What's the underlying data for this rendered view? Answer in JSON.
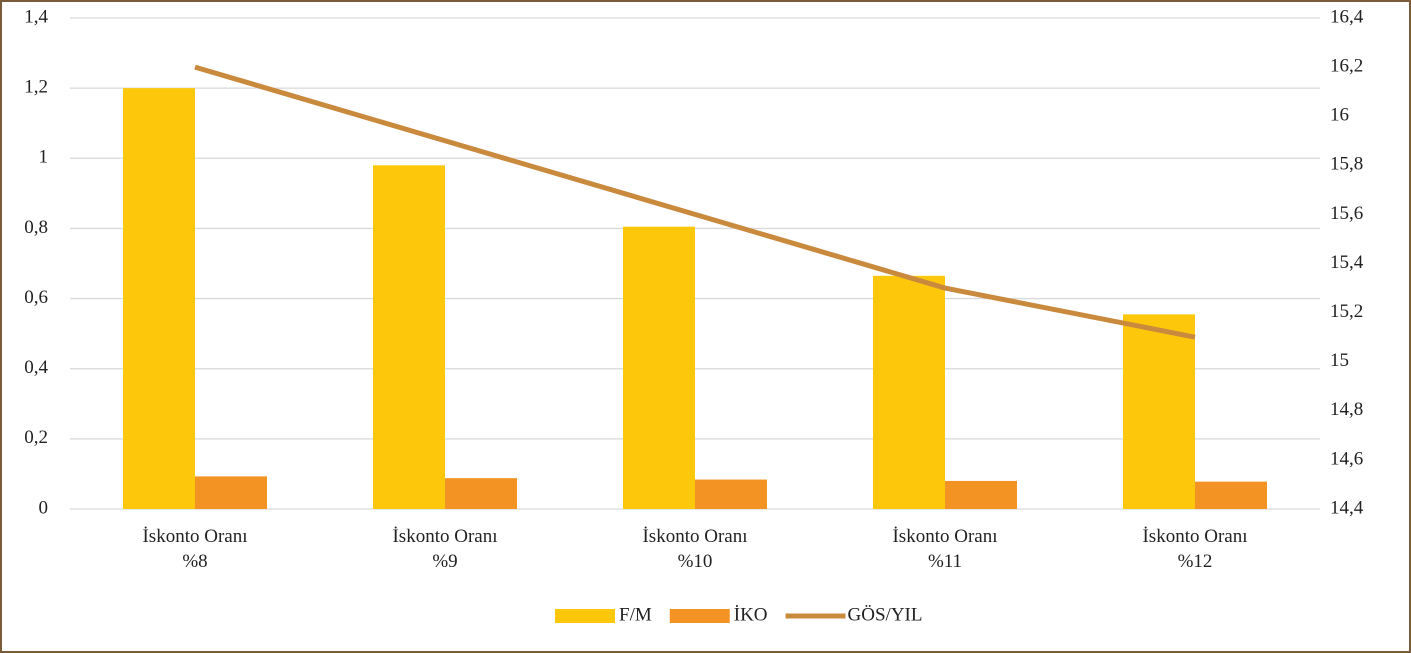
{
  "chart_data": {
    "type": "bar_line",
    "categories": [
      "İskonto Oranı\n%8",
      "İskonto Oranı\n%9",
      "İskonto Oranı\n%10",
      "İskonto Oranı\n%11",
      "İskonto Oranı\n%12"
    ],
    "series": [
      {
        "name": "F/M",
        "type": "bar",
        "color": "#fdc80c",
        "values": [
          1.2,
          0.98,
          0.805,
          0.665,
          0.555
        ]
      },
      {
        "name": "İKO",
        "type": "bar",
        "color": "#f39323",
        "values": [
          0.093,
          0.088,
          0.084,
          0.08,
          0.078
        ]
      },
      {
        "name": "GÖS/YIL",
        "type": "line",
        "axis": "y2",
        "color": "#c98a3e",
        "values": [
          16.2,
          15.9,
          15.6,
          15.3,
          15.1
        ]
      }
    ],
    "ylim": [
      0,
      1.4
    ],
    "yticks": [
      0,
      {
        "value": 0.2,
        "label": "0,2"
      },
      {
        "value": 0.4,
        "label": "0,4"
      },
      {
        "value": 0.6,
        "label": "0,6"
      },
      {
        "value": 0.8,
        "label": "0,8"
      },
      1,
      {
        "value": 1.2,
        "label": "1,2"
      },
      {
        "value": 1.4,
        "label": "1,4"
      }
    ],
    "y2lim": [
      14.4,
      16.4
    ],
    "y2ticks": [
      {
        "value": 14.4,
        "label": "14,4"
      },
      {
        "value": 14.6,
        "label": "14,6"
      },
      {
        "value": 14.8,
        "label": "14,8"
      },
      15,
      {
        "value": 15.2,
        "label": "15,2"
      },
      {
        "value": 15.4,
        "label": "15,4"
      },
      {
        "value": 15.6,
        "label": "15,6"
      },
      {
        "value": 15.8,
        "label": "15,8"
      },
      16,
      {
        "value": 16.2,
        "label": "16,2"
      },
      {
        "value": 16.4,
        "label": "16,4"
      }
    ],
    "grid": true,
    "legend": "bottom"
  }
}
